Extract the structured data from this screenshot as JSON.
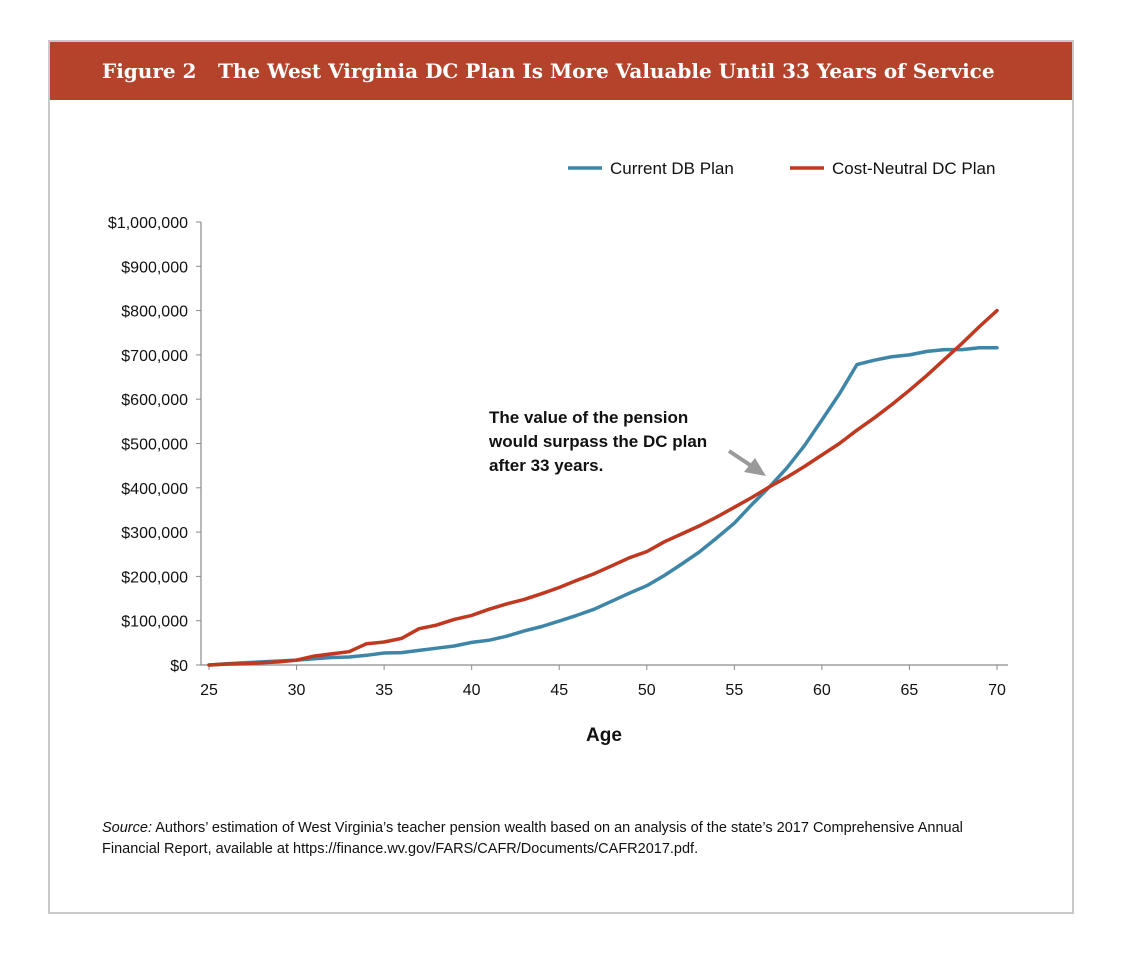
{
  "figure": {
    "label": "Figure 2",
    "title": "The West Virginia DC Plan Is More Valuable Until 33 Years of Service"
  },
  "source": {
    "label": "Source:",
    "text": "Authors’ estimation of West Virginia’s teacher pension wealth based on an analysis of the state’s 2017 Comprehensive Annual Financial Report, available at https://finance.wv.gov/FARS/CAFR/Documents/CAFR2017.pdf."
  },
  "annotation": {
    "lines": [
      "The value of the pension",
      "would surpass the DC plan",
      "after 33 years."
    ]
  },
  "colors": {
    "banner": "#b5432c",
    "db": "#3e86a8",
    "dc": "#c0381f",
    "arrow": "#9a9a9a"
  },
  "chart_data": {
    "type": "line",
    "xlabel": "Age",
    "ylabel": "",
    "xlim": [
      25,
      70
    ],
    "ylim": [
      0,
      1000000
    ],
    "x_ticks": [
      25,
      30,
      35,
      40,
      45,
      50,
      55,
      60,
      65,
      70
    ],
    "y_ticks": [
      0,
      100000,
      200000,
      300000,
      400000,
      500000,
      600000,
      700000,
      800000,
      900000,
      1000000
    ],
    "x_tick_labels": [
      "25",
      "30",
      "35",
      "40",
      "45",
      "50",
      "55",
      "60",
      "65",
      "70"
    ],
    "y_tick_labels": [
      "$0",
      "$100,000",
      "$200,000",
      "$300,000",
      "$400,000",
      "$500,000",
      "$600,000",
      "$700,000",
      "$800,000",
      "$900,000",
      "$1,000,000"
    ],
    "legend_position": "top-right",
    "x": [
      25,
      26,
      27,
      28,
      29,
      30,
      31,
      32,
      33,
      34,
      35,
      36,
      37,
      38,
      39,
      40,
      41,
      42,
      43,
      44,
      45,
      46,
      47,
      48,
      49,
      50,
      51,
      52,
      53,
      54,
      55,
      56,
      57,
      58,
      59,
      60,
      61,
      62,
      63,
      64,
      65,
      66,
      67,
      68,
      69,
      70
    ],
    "series": [
      {
        "name": "Current DB Plan",
        "color": "#3e86a8",
        "values": [
          0,
          3000,
          5000,
          7000,
          9000,
          11000,
          14000,
          17000,
          18000,
          22000,
          27000,
          28000,
          33000,
          38000,
          43000,
          51000,
          56000,
          65000,
          77000,
          87000,
          99000,
          112000,
          126000,
          144000,
          162000,
          179000,
          202000,
          228000,
          255000,
          287000,
          320000,
          362000,
          402000,
          445000,
          495000,
          553000,
          612000,
          678000,
          688000,
          696000,
          700000,
          708000,
          712000,
          712000,
          716000,
          716000
        ]
      },
      {
        "name": "Cost-Neutral DC Plan",
        "color": "#c0381f",
        "values": [
          0,
          2000,
          3000,
          5000,
          7000,
          11000,
          20000,
          25000,
          30000,
          48000,
          52000,
          60000,
          82000,
          90000,
          103000,
          112000,
          126000,
          138000,
          148000,
          161000,
          175000,
          191000,
          206000,
          224000,
          242000,
          256000,
          278000,
          296000,
          314000,
          334000,
          356000,
          378000,
          402000,
          424000,
          448000,
          474000,
          500000,
          530000,
          558000,
          588000,
          620000,
          654000,
          690000,
          726000,
          764000,
          800000
        ]
      }
    ]
  }
}
